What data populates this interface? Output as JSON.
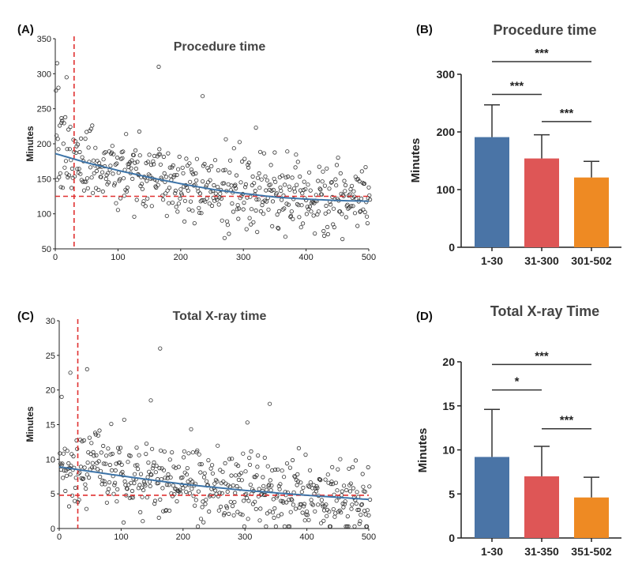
{
  "colors": {
    "bar_1": "#4a74a6",
    "bar_2": "#de5656",
    "bar_3": "#ee8a23",
    "fit_line": "#3d74a8",
    "threshold": "#e03131"
  },
  "chart_data": [
    {
      "panel": "(A)",
      "type": "scatter",
      "title": "Procedure time",
      "xlabel": "",
      "ylabel": "Minutes",
      "xlim": [
        0,
        500
      ],
      "ylim": [
        50,
        350
      ],
      "xticks": [
        0,
        100,
        200,
        300,
        400,
        500
      ],
      "yticks": [
        50,
        100,
        150,
        200,
        250,
        300,
        350
      ],
      "threshold_x": 30,
      "threshold_y": 125,
      "fit_curve": {
        "x": [
          0,
          50,
          100,
          150,
          200,
          250,
          300,
          350,
          400,
          450,
          500
        ],
        "y": [
          186,
          173,
          162,
          152,
          143,
          135,
          129,
          124,
          121,
          119,
          118
        ]
      },
      "n_points": 502,
      "outliers": [
        [
          3,
          315
        ],
        [
          18,
          295
        ],
        [
          165,
          310
        ],
        [
          235,
          268
        ],
        [
          320,
          223
        ],
        [
          10,
          230
        ],
        [
          5,
          280
        ]
      ]
    },
    {
      "panel": "(B)",
      "type": "bar",
      "title": "Procedure time",
      "ylabel": "Minutes",
      "categories": [
        "1-30",
        "31-300",
        "301-502"
      ],
      "values": [
        191,
        154,
        121
      ],
      "errors": [
        56,
        41,
        28
      ],
      "ylim": [
        0,
        300
      ],
      "yticks": [
        0,
        100,
        200,
        300
      ],
      "significance": [
        {
          "from": 0,
          "to": 1,
          "label": "***",
          "level": 265
        },
        {
          "from": 1,
          "to": 2,
          "label": "***",
          "level": 218
        },
        {
          "from": 0,
          "to": 2,
          "label": "***",
          "level": 322
        }
      ]
    },
    {
      "panel": "(C)",
      "type": "scatter",
      "title": "Total X-ray time",
      "xlabel": "",
      "ylabel": "Minutes",
      "xlim": [
        0,
        500
      ],
      "ylim": [
        0,
        30
      ],
      "xticks": [
        0,
        100,
        200,
        300,
        400,
        500
      ],
      "yticks": [
        0,
        5,
        10,
        15,
        20,
        25,
        30
      ],
      "threshold_x": 30,
      "threshold_y": 4.8,
      "fit_curve": {
        "x": [
          0,
          100,
          200,
          300,
          400,
          500
        ],
        "y": [
          8.9,
          7.6,
          6.4,
          5.5,
          4.8,
          4.2
        ]
      },
      "n_points": 502,
      "outliers": [
        [
          163,
          26
        ],
        [
          18,
          22.5
        ],
        [
          45,
          23
        ],
        [
          340,
          18
        ],
        [
          148,
          18.5
        ],
        [
          4,
          19
        ]
      ]
    },
    {
      "panel": "(D)",
      "type": "bar",
      "title": "Total X-ray Time",
      "ylabel": "Minutes",
      "categories": [
        "1-30",
        "31-350",
        "351-502"
      ],
      "values": [
        9.2,
        7.0,
        4.6
      ],
      "errors": [
        5.4,
        3.4,
        2.3
      ],
      "ylim": [
        0,
        20
      ],
      "yticks": [
        0,
        5,
        10,
        15,
        20
      ],
      "significance": [
        {
          "from": 0,
          "to": 1,
          "label": "*",
          "level": 16.8
        },
        {
          "from": 1,
          "to": 2,
          "label": "***",
          "level": 12.4
        },
        {
          "from": 0,
          "to": 2,
          "label": "***",
          "level": 19.7
        }
      ]
    }
  ]
}
